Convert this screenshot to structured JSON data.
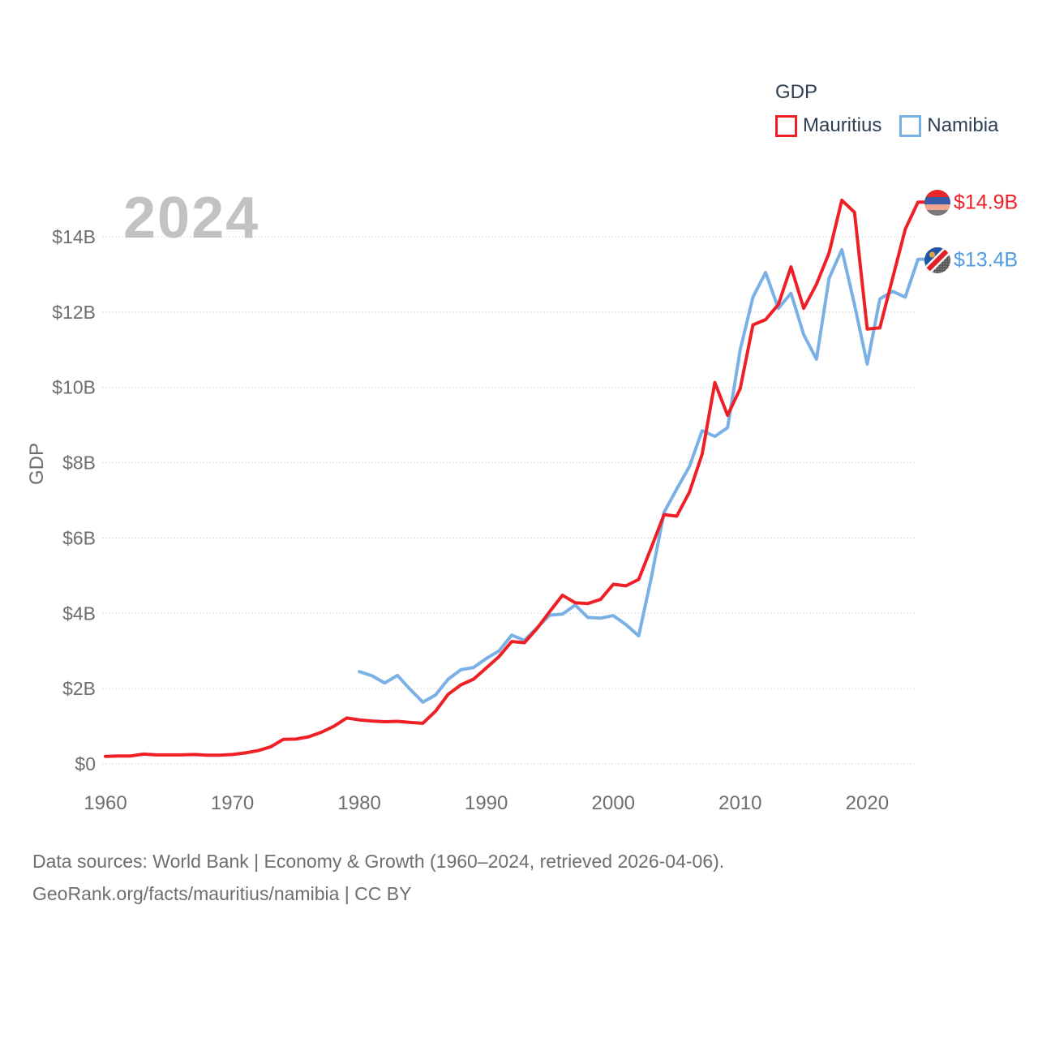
{
  "legend": {
    "title": "GDP",
    "items": [
      {
        "label": "Mauritius",
        "color": "#ee2026"
      },
      {
        "label": "Namibia",
        "color": "#79b1e6"
      }
    ]
  },
  "watermark": "2024",
  "colors": {
    "mauritius": "#ee2026",
    "namibia": "#79b1e6",
    "gridline": "#dcdcdc",
    "axis_text": "#6e6e6e",
    "legend_text": "#2d3e50",
    "watermark": "#c2c2c2"
  },
  "end_labels": [
    {
      "series": "Mauritius",
      "label": "$14.9B",
      "flag": "mauritius-flag"
    },
    {
      "series": "Namibia",
      "label": "$13.4B",
      "flag": "namibia-flag"
    }
  ],
  "chart_data": {
    "type": "line",
    "title": "GDP",
    "xlabel": "",
    "ylabel": "GDP",
    "unit": "USD billions",
    "xlim": [
      1958.5,
      2025.5
    ],
    "ylim": [
      0,
      15.2
    ],
    "grid": "horizontal",
    "legend_position": "top-right",
    "x_ticks": [
      {
        "year": 1960,
        "label": "1960"
      },
      {
        "year": 1970,
        "label": "1970"
      },
      {
        "year": 1980,
        "label": "1980"
      },
      {
        "year": 1990,
        "label": "1990"
      },
      {
        "year": 2000,
        "label": "2000"
      },
      {
        "year": 2010,
        "label": "2010"
      },
      {
        "year": 2020,
        "label": "2020"
      }
    ],
    "y_ticks": [
      {
        "value": 0,
        "label": "$0"
      },
      {
        "value": 2,
        "label": "$2B"
      },
      {
        "value": 4,
        "label": "$4B"
      },
      {
        "value": 6,
        "label": "$6B"
      },
      {
        "value": 8,
        "label": "$8B"
      },
      {
        "value": 10,
        "label": "$10B"
      },
      {
        "value": 12,
        "label": "$12B"
      },
      {
        "value": 14,
        "label": "$14B"
      }
    ],
    "series": [
      {
        "name": "Mauritius",
        "color": "#ee2026",
        "start_year": 1960,
        "end_year": 2024,
        "end_value_label": "$14.9B",
        "values": [
          0.2,
          0.21,
          0.21,
          0.26,
          0.24,
          0.24,
          0.24,
          0.25,
          0.23,
          0.23,
          0.25,
          0.29,
          0.35,
          0.45,
          0.65,
          0.66,
          0.72,
          0.84,
          1.0,
          1.22,
          1.17,
          1.14,
          1.12,
          1.13,
          1.1,
          1.08,
          1.4,
          1.85,
          2.1,
          2.25,
          2.55,
          2.85,
          3.25,
          3.22,
          3.6,
          4.05,
          4.48,
          4.28,
          4.26,
          4.37,
          4.77,
          4.73,
          4.9,
          5.75,
          6.62,
          6.58,
          7.22,
          8.22,
          10.13,
          9.26,
          9.97,
          11.66,
          11.8,
          12.2,
          13.2,
          12.1,
          12.74,
          13.57,
          14.97,
          14.65,
          11.55,
          11.58,
          12.9,
          14.2,
          14.92
        ]
      },
      {
        "name": "Namibia",
        "color": "#79b1e6",
        "start_year": 1980,
        "end_year": 2024,
        "end_value_label": "$13.4B",
        "values": [
          2.45,
          2.34,
          2.15,
          2.35,
          1.98,
          1.64,
          1.83,
          2.25,
          2.5,
          2.56,
          2.8,
          3.0,
          3.42,
          3.28,
          3.62,
          3.95,
          3.98,
          4.22,
          3.89,
          3.87,
          3.94,
          3.7,
          3.4,
          4.95,
          6.68,
          7.3,
          7.9,
          8.85,
          8.7,
          8.93,
          11.0,
          12.4,
          13.05,
          12.1,
          12.5,
          11.4,
          10.75,
          12.9,
          13.66,
          12.2,
          10.62,
          12.35,
          12.55,
          12.4,
          13.4
        ]
      }
    ]
  },
  "footer": {
    "line1": "Data sources: World Bank | Economy & Growth (1960–2024, retrieved 2026-04-06).",
    "line2": "GeoRank.org/facts/mauritius/namibia | CC BY"
  }
}
